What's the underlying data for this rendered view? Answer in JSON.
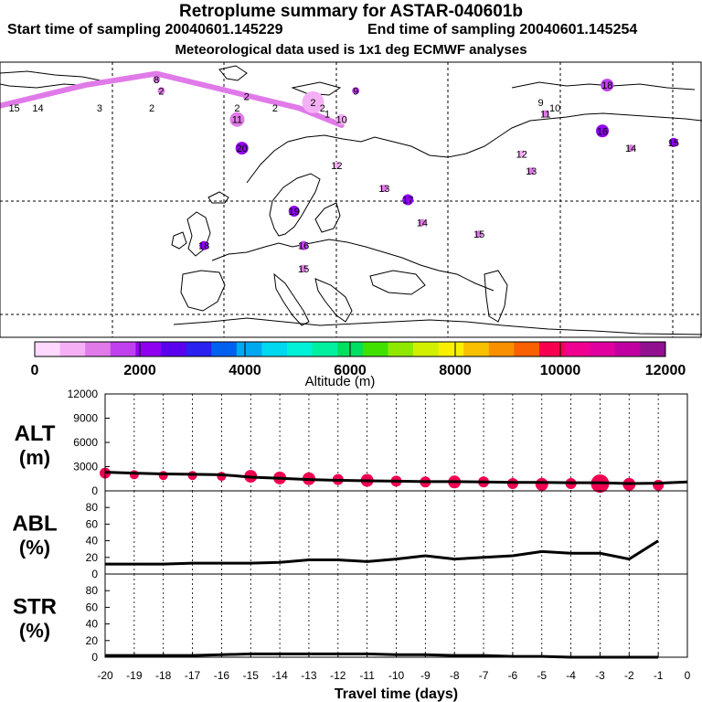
{
  "header": {
    "title": "Retroplume summary for ASTAR-040601b",
    "start": "Start time of sampling 20040601.145229",
    "end": "End time of sampling 20040601.145254",
    "met": "Meteorological data used is 1x1 deg ECMWF analyses"
  },
  "colorbar": {
    "colors": [
      "#ffd8ff",
      "#f5b0f5",
      "#e07ae8",
      "#c040f0",
      "#9000f0",
      "#5a00ee",
      "#2a20f0",
      "#0060f0",
      "#00a8f0",
      "#00d8f0",
      "#00f0d8",
      "#00f0a0",
      "#00e060",
      "#40e000",
      "#90e800",
      "#d0f000",
      "#f8f000",
      "#f8c000",
      "#f89000",
      "#f86000",
      "#f80050",
      "#f00090",
      "#e000a0",
      "#c000a0",
      "#901090"
    ],
    "tick_labels": [
      "0",
      "2000",
      "4000",
      "6000",
      "8000",
      "10000",
      "12000"
    ],
    "xlabel": "Altitude (m)"
  },
  "map": {
    "labels": [
      {
        "t": "15",
        "lon": -35,
        "lat": 76,
        "c": "#000"
      },
      {
        "t": "14",
        "lon": -30,
        "lat": 76,
        "c": "#000"
      },
      {
        "t": "3",
        "lon": -17,
        "lat": 76,
        "c": "#000"
      },
      {
        "t": "2",
        "lon": -6,
        "lat": 76,
        "c": "#000"
      },
      {
        "t": "2",
        "lon": 12,
        "lat": 76,
        "c": "#000"
      },
      {
        "t": "2",
        "lon": 20,
        "lat": 76,
        "c": "#000"
      },
      {
        "t": "2",
        "lon": 30,
        "lat": 76,
        "c": "#000"
      },
      {
        "t": "1",
        "lon": 31,
        "lat": 75,
        "c": "#000"
      },
      {
        "t": "10",
        "lon": 79,
        "lat": 76,
        "c": "#000"
      },
      {
        "t": "9",
        "lon": 76,
        "lat": 77,
        "c": "#000"
      }
    ],
    "markers": [
      {
        "t": "8",
        "lon": -5,
        "lat": 81,
        "r": 4,
        "c": "#e07ae8"
      },
      {
        "t": "2",
        "lon": -4,
        "lat": 79,
        "r": 4,
        "c": "#e07ae8"
      },
      {
        "t": "2",
        "lon": 14,
        "lat": 78,
        "r": 4,
        "c": "#e07ae8"
      },
      {
        "t": "2",
        "lon": 28,
        "lat": 77,
        "r": 12,
        "c": "#f5b0f5"
      },
      {
        "t": "9",
        "lon": 37,
        "lat": 79,
        "r": 4,
        "c": "#c040f0"
      },
      {
        "t": "11",
        "lon": 12,
        "lat": 74,
        "r": 8,
        "c": "#e07ae8"
      },
      {
        "t": "10",
        "lon": 34,
        "lat": 74,
        "r": 6,
        "c": "#f5b0f5"
      },
      {
        "t": "20",
        "lon": 13,
        "lat": 69,
        "r": 7,
        "c": "#9000f0"
      },
      {
        "t": "12",
        "lon": 33,
        "lat": 66,
        "r": 4,
        "c": "#f5b0f5"
      },
      {
        "t": "13",
        "lon": 43,
        "lat": 62,
        "r": 4,
        "c": "#e07ae8"
      },
      {
        "t": "17",
        "lon": 48,
        "lat": 60,
        "r": 6,
        "c": "#9000f0"
      },
      {
        "t": "19",
        "lon": 24,
        "lat": 58,
        "r": 6,
        "c": "#9000f0"
      },
      {
        "t": "14",
        "lon": 51,
        "lat": 56,
        "r": 4,
        "c": "#e07ae8"
      },
      {
        "t": "15",
        "lon": 63,
        "lat": 54,
        "r": 4,
        "c": "#e07ae8"
      },
      {
        "t": "16",
        "lon": 26,
        "lat": 52,
        "r": 5,
        "c": "#c040f0"
      },
      {
        "t": "15",
        "lon": 26,
        "lat": 48,
        "r": 4,
        "c": "#e07ae8"
      },
      {
        "t": "18",
        "lon": 5,
        "lat": 52,
        "r": 5,
        "c": "#9000f0"
      },
      {
        "t": "18",
        "lon": 90,
        "lat": 80,
        "r": 7,
        "c": "#c040f0"
      },
      {
        "t": "11",
        "lon": 77,
        "lat": 75,
        "r": 4,
        "c": "#e07ae8"
      },
      {
        "t": "16",
        "lon": 89,
        "lat": 72,
        "r": 7,
        "c": "#9000f0"
      },
      {
        "t": "14",
        "lon": 95,
        "lat": 69,
        "r": 4,
        "c": "#e07ae8"
      },
      {
        "t": "15",
        "lon": 104,
        "lat": 70,
        "r": 5,
        "c": "#9000f0"
      },
      {
        "t": "12",
        "lon": 72,
        "lat": 68,
        "r": 4,
        "c": "#f5b0f5"
      },
      {
        "t": "13",
        "lon": 74,
        "lat": 65,
        "r": 4,
        "c": "#e07ae8"
      }
    ]
  },
  "chart_data": [
    {
      "type": "scatter",
      "panel": "ALT",
      "ylabel": "ALT",
      "yunit": "(m)",
      "ylim": [
        0,
        12000
      ],
      "yticks": [
        "0",
        "3000",
        "6000",
        "9000",
        "12000"
      ],
      "x": [
        -20,
        -19,
        -18,
        -17,
        -16,
        -15,
        -14,
        -13,
        -12,
        -11,
        -10,
        -9,
        -8,
        -7,
        -6,
        -5,
        -4,
        -3,
        -2,
        -1,
        0
      ],
      "line": [
        2300,
        2200,
        2100,
        2050,
        2000,
        1700,
        1550,
        1400,
        1300,
        1250,
        1200,
        1150,
        1150,
        1100,
        1050,
        1050,
        1000,
        1000,
        900,
        950,
        1100
      ],
      "points": [
        {
          "x": -20,
          "y": 2200,
          "r": 6
        },
        {
          "x": -19,
          "y": 2000,
          "r": 5
        },
        {
          "x": -18,
          "y": 1900,
          "r": 5
        },
        {
          "x": -17,
          "y": 1900,
          "r": 5
        },
        {
          "x": -16,
          "y": 1800,
          "r": 5
        },
        {
          "x": -15,
          "y": 1800,
          "r": 7
        },
        {
          "x": -14,
          "y": 1600,
          "r": 7
        },
        {
          "x": -13,
          "y": 1500,
          "r": 7
        },
        {
          "x": -12,
          "y": 1400,
          "r": 6
        },
        {
          "x": -11,
          "y": 1300,
          "r": 7
        },
        {
          "x": -10,
          "y": 1200,
          "r": 6
        },
        {
          "x": -9,
          "y": 1100,
          "r": 6
        },
        {
          "x": -8,
          "y": 1100,
          "r": 7
        },
        {
          "x": -7,
          "y": 1100,
          "r": 6
        },
        {
          "x": -6,
          "y": 900,
          "r": 6
        },
        {
          "x": -5,
          "y": 800,
          "r": 7
        },
        {
          "x": -4,
          "y": 900,
          "r": 6
        },
        {
          "x": -3,
          "y": 900,
          "r": 10
        },
        {
          "x": -2,
          "y": 800,
          "r": 7
        },
        {
          "x": -1,
          "y": 700,
          "r": 6
        }
      ],
      "point_color": "#f00050"
    },
    {
      "type": "line",
      "panel": "ABL",
      "ylabel": "ABL",
      "yunit": "(%)",
      "ylim": [
        0,
        100
      ],
      "yticks": [
        "0",
        "20",
        "40",
        "60",
        "80"
      ],
      "x": [
        -20,
        -19,
        -18,
        -17,
        -16,
        -15,
        -14,
        -13,
        -12,
        -11,
        -10,
        -9,
        -8,
        -7,
        -6,
        -5,
        -4,
        -3,
        -2,
        -1
      ],
      "values": [
        12,
        12,
        12,
        13,
        13,
        13,
        14,
        17,
        17,
        15,
        18,
        22,
        18,
        20,
        22,
        27,
        25,
        25,
        18,
        40
      ]
    },
    {
      "type": "line",
      "panel": "STR",
      "ylabel": "STR",
      "yunit": "(%)",
      "ylim": [
        0,
        100
      ],
      "yticks": [
        "0",
        "20",
        "40",
        "60",
        "80"
      ],
      "x": [
        -20,
        -19,
        -18,
        -17,
        -16,
        -15,
        -14,
        -13,
        -12,
        -11,
        -10,
        -9,
        -8,
        -7,
        -6,
        -5,
        -4,
        -3,
        -2,
        -1
      ],
      "values": [
        2,
        2,
        2,
        2,
        3,
        4,
        4,
        4,
        4,
        4,
        3,
        3,
        2,
        2,
        1,
        1,
        0,
        0,
        0,
        0
      ],
      "xlabel": "Travel time (days)",
      "xticks": [
        "-20",
        "-19",
        "-18",
        "-17",
        "-16",
        "-15",
        "-14",
        "-13",
        "-12",
        "-11",
        "-10",
        "-9",
        "-8",
        "-7",
        "-6",
        "-5",
        "-4",
        "-3",
        "-2",
        "-1",
        "0"
      ]
    }
  ]
}
